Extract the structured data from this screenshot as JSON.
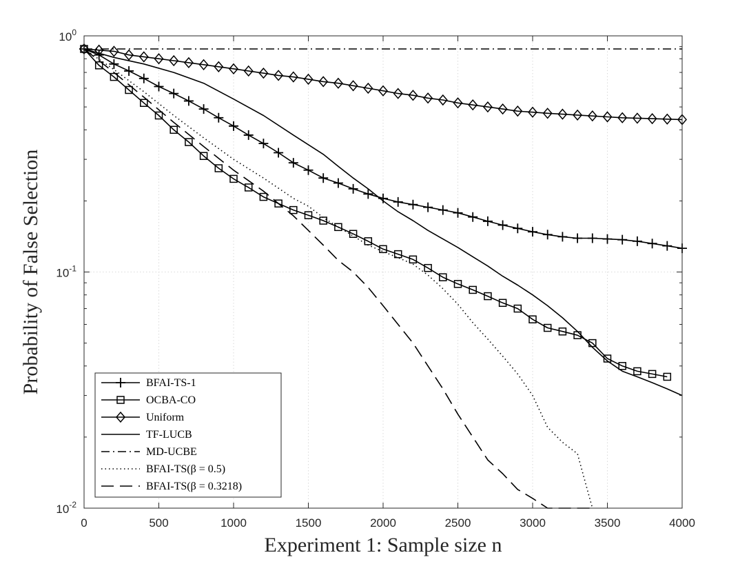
{
  "chart_data": {
    "type": "line",
    "title": "",
    "xlabel": "Experiment 1: Sample size n",
    "ylabel": "Probability of False Selection",
    "xlim": [
      0,
      4000
    ],
    "ylim": [
      0.01,
      1
    ],
    "yscale": "log",
    "grid": true,
    "legend_position": "bottom-left",
    "x_ticks": [
      0,
      500,
      1000,
      1500,
      2000,
      2500,
      3000,
      3500,
      4000
    ],
    "x_tick_labels": [
      "0",
      "500",
      "1000",
      "1500",
      "2000",
      "2500",
      "3000",
      "3500",
      "4000"
    ],
    "y_ticks": [
      0.01,
      0.1,
      1
    ],
    "y_tick_labels": [
      {
        "base": "10",
        "exp": "-2"
      },
      {
        "base": "10",
        "exp": "-1"
      },
      {
        "base": "10",
        "exp": "0"
      }
    ],
    "series": [
      {
        "name": "BFAI-TS-1",
        "style": "solid",
        "marker": "plus",
        "x": [
          0,
          100,
          200,
          300,
          400,
          500,
          600,
          700,
          800,
          900,
          1000,
          1100,
          1200,
          1300,
          1400,
          1500,
          1600,
          1700,
          1800,
          1900,
          2000,
          2100,
          2200,
          2300,
          2400,
          2500,
          2600,
          2700,
          2800,
          2900,
          3000,
          3100,
          3200,
          3300,
          3400,
          3500,
          3600,
          3700,
          3800,
          3900,
          4000
        ],
        "y": [
          0.88,
          0.83,
          0.76,
          0.71,
          0.66,
          0.61,
          0.57,
          0.53,
          0.49,
          0.45,
          0.415,
          0.38,
          0.35,
          0.32,
          0.29,
          0.27,
          0.25,
          0.238,
          0.225,
          0.214,
          0.205,
          0.198,
          0.193,
          0.188,
          0.183,
          0.178,
          0.171,
          0.164,
          0.158,
          0.153,
          0.148,
          0.144,
          0.141,
          0.139,
          0.139,
          0.138,
          0.137,
          0.135,
          0.132,
          0.129,
          0.126
        ]
      },
      {
        "name": "OCBA-CO",
        "style": "solid",
        "marker": "square",
        "x": [
          0,
          100,
          200,
          300,
          400,
          500,
          600,
          700,
          800,
          900,
          1000,
          1100,
          1200,
          1300,
          1400,
          1500,
          1600,
          1700,
          1800,
          1900,
          2000,
          2100,
          2200,
          2300,
          2400,
          2500,
          2600,
          2700,
          2800,
          2900,
          3000,
          3100,
          3200,
          3300,
          3400,
          3500,
          3600,
          3700,
          3800,
          3900
        ],
        "y": [
          0.88,
          0.75,
          0.67,
          0.59,
          0.52,
          0.46,
          0.4,
          0.355,
          0.31,
          0.275,
          0.248,
          0.228,
          0.208,
          0.195,
          0.183,
          0.174,
          0.165,
          0.155,
          0.145,
          0.135,
          0.125,
          0.119,
          0.113,
          0.104,
          0.095,
          0.089,
          0.084,
          0.079,
          0.074,
          0.07,
          0.063,
          0.058,
          0.056,
          0.054,
          0.05,
          0.043,
          0.04,
          0.038,
          0.037,
          0.036
        ]
      },
      {
        "name": "Uniform",
        "style": "solid",
        "marker": "diamond",
        "x": [
          0,
          100,
          200,
          300,
          400,
          500,
          600,
          700,
          800,
          900,
          1000,
          1100,
          1200,
          1300,
          1400,
          1500,
          1600,
          1700,
          1800,
          1900,
          2000,
          2100,
          2200,
          2300,
          2400,
          2500,
          2600,
          2700,
          2800,
          2900,
          3000,
          3100,
          3200,
          3300,
          3400,
          3500,
          3600,
          3700,
          3800,
          3900,
          4000
        ],
        "y": [
          0.88,
          0.87,
          0.86,
          0.83,
          0.815,
          0.8,
          0.785,
          0.77,
          0.755,
          0.74,
          0.725,
          0.71,
          0.695,
          0.68,
          0.67,
          0.655,
          0.64,
          0.63,
          0.615,
          0.6,
          0.585,
          0.57,
          0.56,
          0.545,
          0.535,
          0.52,
          0.51,
          0.5,
          0.49,
          0.48,
          0.475,
          0.47,
          0.466,
          0.462,
          0.458,
          0.454,
          0.45,
          0.448,
          0.446,
          0.444,
          0.442
        ]
      },
      {
        "name": "TF-LUCB",
        "style": "solid",
        "marker": "none",
        "x": [
          0,
          200,
          400,
          600,
          800,
          1000,
          1200,
          1400,
          1600,
          1700,
          1800,
          1900,
          2000,
          2100,
          2200,
          2300,
          2400,
          2500,
          2600,
          2700,
          2800,
          2900,
          3000,
          3100,
          3200,
          3300,
          3400,
          3500,
          3600,
          3700,
          3800,
          3900,
          4000
        ],
        "y": [
          0.88,
          0.81,
          0.76,
          0.7,
          0.63,
          0.54,
          0.46,
          0.38,
          0.315,
          0.28,
          0.25,
          0.225,
          0.2,
          0.18,
          0.165,
          0.15,
          0.138,
          0.127,
          0.116,
          0.106,
          0.096,
          0.088,
          0.08,
          0.072,
          0.064,
          0.056,
          0.048,
          0.042,
          0.038,
          0.036,
          0.034,
          0.032,
          0.03
        ]
      },
      {
        "name": "MD-UCBE",
        "style": "dashdot",
        "marker": "none",
        "x": [
          0,
          4000
        ],
        "y": [
          0.88,
          0.88
        ]
      },
      {
        "name": "BFAI-TS(β = 0.5)",
        "style": "dotted",
        "marker": "none",
        "x": [
          0,
          200,
          400,
          600,
          800,
          1000,
          1200,
          1400,
          1500,
          1600,
          1700,
          1800,
          1900,
          2000,
          2100,
          2200,
          2300,
          2400,
          2500,
          2600,
          2700,
          2800,
          2900,
          3000,
          3100,
          3200,
          3300,
          3350,
          3400
        ],
        "y": [
          0.88,
          0.72,
          0.58,
          0.46,
          0.37,
          0.3,
          0.25,
          0.205,
          0.19,
          0.17,
          0.155,
          0.142,
          0.13,
          0.122,
          0.115,
          0.108,
          0.097,
          0.085,
          0.073,
          0.061,
          0.052,
          0.044,
          0.037,
          0.03,
          0.022,
          0.019,
          0.017,
          0.013,
          0.01
        ]
      },
      {
        "name": "BFAI-TS(β = 0.3218)",
        "style": "dashed",
        "marker": "none",
        "x": [
          0,
          200,
          400,
          600,
          800,
          1000,
          1200,
          1300,
          1400,
          1500,
          1600,
          1700,
          1800,
          1900,
          2000,
          2100,
          2200,
          2300,
          2400,
          2500,
          2600,
          2700,
          2800,
          2900,
          3000,
          3100,
          3200,
          3300,
          3400
        ],
        "y": [
          0.88,
          0.7,
          0.55,
          0.43,
          0.34,
          0.27,
          0.22,
          0.195,
          0.173,
          0.15,
          0.13,
          0.112,
          0.1,
          0.086,
          0.072,
          0.06,
          0.05,
          0.04,
          0.032,
          0.025,
          0.02,
          0.016,
          0.014,
          0.012,
          0.011,
          0.01,
          0.01,
          0.01,
          0.01
        ]
      }
    ]
  }
}
